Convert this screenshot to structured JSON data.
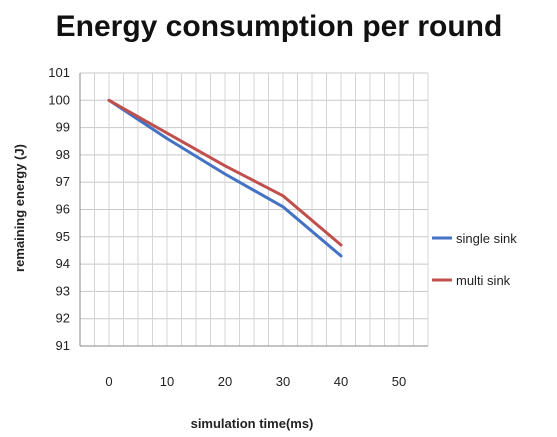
{
  "chart_data": {
    "type": "line",
    "title": "Energy consumption per round",
    "xlabel": "simulation time(ms)",
    "ylabel": "remaining energy (J)",
    "x": [
      0,
      10,
      20,
      30,
      40
    ],
    "xticks": [
      "0",
      "10",
      "20",
      "30",
      "40",
      "50"
    ],
    "yticks": [
      "91",
      "92",
      "93",
      "94",
      "95",
      "96",
      "97",
      "98",
      "99",
      "100",
      "101"
    ],
    "xlim": [
      -5,
      55
    ],
    "ylim": [
      91,
      101
    ],
    "grid": true,
    "legend_position": "right",
    "series": [
      {
        "name": "single sink",
        "color": "#4472C4",
        "values": [
          100,
          98.6,
          97.3,
          96.1,
          94.3
        ]
      },
      {
        "name": "multi sink",
        "color": "#C0504D",
        "values": [
          100,
          98.8,
          97.6,
          96.5,
          94.7
        ]
      }
    ]
  }
}
